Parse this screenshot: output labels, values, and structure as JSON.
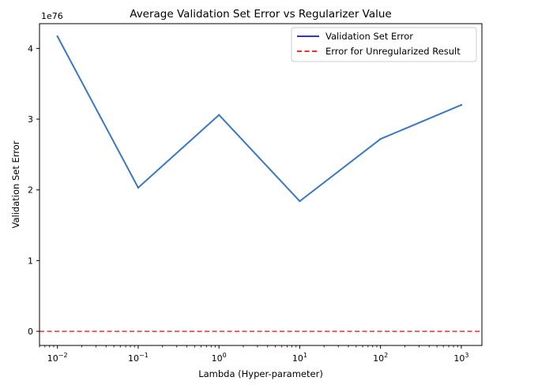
{
  "chart_data": {
    "type": "line",
    "title": "Average Validation Set Error vs Regularizer Value",
    "xlabel": "Lambda (Hyper-parameter)",
    "ylabel": "Validation Set Error",
    "xscale": "log",
    "xlim": [
      0.006,
      1800
    ],
    "ylim": [
      -0.2,
      4.35
    ],
    "y_multiplier": "1e76",
    "xticks": [
      {
        "value": 0.01,
        "base": "10",
        "exp": "−2"
      },
      {
        "value": 0.1,
        "base": "10",
        "exp": "−1"
      },
      {
        "value": 1,
        "base": "10",
        "exp": "0"
      },
      {
        "value": 10,
        "base": "10",
        "exp": "1"
      },
      {
        "value": 100,
        "base": "10",
        "exp": "2"
      },
      {
        "value": 1000,
        "base": "10",
        "exp": "3"
      }
    ],
    "yticks": [
      {
        "value": 0,
        "label": "0"
      },
      {
        "value": 1,
        "label": "1"
      },
      {
        "value": 2,
        "label": "2"
      },
      {
        "value": 3,
        "label": "3"
      },
      {
        "value": 4,
        "label": "4"
      }
    ],
    "series": [
      {
        "name": "Validation Set Error",
        "style": "solid",
        "color": "#3a79c5",
        "x": [
          0.01,
          0.1,
          1,
          10,
          100,
          1000
        ],
        "y": [
          4.17,
          2.03,
          3.06,
          1.84,
          2.72,
          3.2
        ]
      },
      {
        "name": "Error for Unregularized Result",
        "style": "dashed",
        "color": "#ff2a2a",
        "y_constant": 0.0
      }
    ],
    "legend": {
      "position": "top-right",
      "entries": [
        {
          "label": "Validation Set Error",
          "color": "#3333dd",
          "style": "solid"
        },
        {
          "label": "Error for Unregularized Result",
          "color": "#ff2a2a",
          "style": "dashed"
        }
      ]
    },
    "grid": false
  }
}
